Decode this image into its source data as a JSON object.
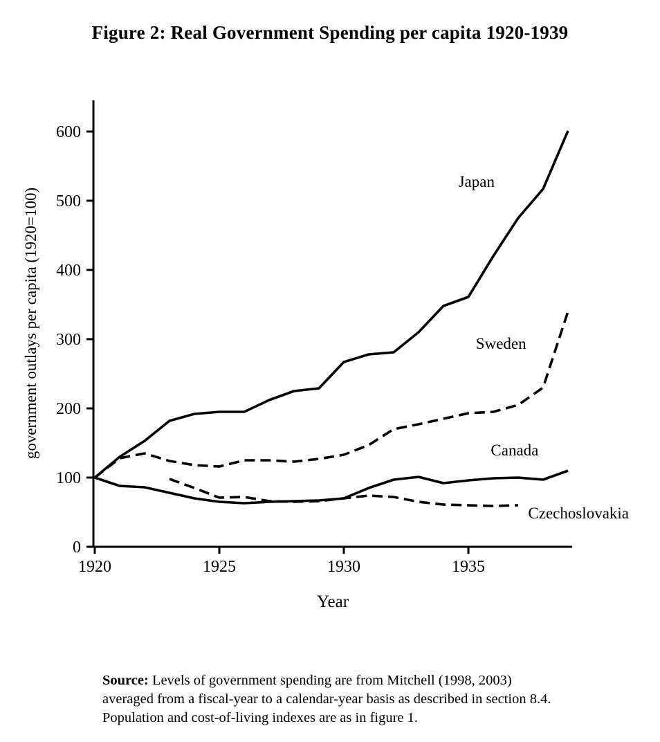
{
  "source": {
    "label": "Source:",
    "text": "Levels of government spending are from Mitchell (1998, 2003) averaged from a fiscal-year to a calendar-year basis as described in section 8.4.  Population and cost-of-living indexes are as in figure 1."
  },
  "chart_data": {
    "type": "line",
    "title": "Figure 2: Real Government Spending per capita 1920-1939",
    "xlabel": "Year",
    "ylabel": "government outlays per capita (1920=100)",
    "xlim": [
      1920,
      1939
    ],
    "ylim": [
      0,
      600
    ],
    "xticks": [
      1920,
      1925,
      1930,
      1935
    ],
    "yticks": [
      0,
      100,
      200,
      300,
      400,
      500,
      600
    ],
    "grid": false,
    "legend": "inline-labels",
    "line_color": "#000000",
    "series": [
      {
        "name": "Japan",
        "style": "solid",
        "label_x": 1934.6,
        "label_y": 520,
        "x": [
          1920,
          1921,
          1922,
          1923,
          1924,
          1925,
          1926,
          1927,
          1928,
          1929,
          1930,
          1931,
          1932,
          1933,
          1934,
          1935,
          1936,
          1937,
          1938,
          1939
        ],
        "values": [
          100,
          130,
          153,
          182,
          192,
          195,
          195,
          212,
          225,
          229,
          267,
          278,
          281,
          310,
          348,
          361,
          420,
          475,
          517,
          601
        ]
      },
      {
        "name": "Sweden",
        "style": "dashed",
        "label_x": 1935.3,
        "label_y": 286,
        "x": [
          1920,
          1921,
          1922,
          1923,
          1924,
          1925,
          1926,
          1927,
          1928,
          1929,
          1930,
          1931,
          1932,
          1933,
          1934,
          1935,
          1936,
          1937,
          1938,
          1939
        ],
        "values": [
          100,
          128,
          135,
          124,
          118,
          116,
          125,
          125,
          123,
          127,
          133,
          147,
          170,
          177,
          185,
          193,
          195,
          205,
          230,
          340
        ]
      },
      {
        "name": "Canada",
        "style": "solid",
        "label_x": 1935.9,
        "label_y": 132,
        "x": [
          1920,
          1921,
          1922,
          1923,
          1924,
          1925,
          1926,
          1927,
          1928,
          1929,
          1930,
          1931,
          1932,
          1933,
          1934,
          1935,
          1936,
          1937,
          1938,
          1939
        ],
        "values": [
          100,
          88,
          86,
          78,
          70,
          65,
          63,
          65,
          66,
          67,
          70,
          85,
          97,
          101,
          92,
          96,
          99,
          100,
          97,
          110
        ]
      },
      {
        "name": "Czechoslovakia",
        "style": "dashed",
        "label_x": 1937.4,
        "label_y": 41,
        "x": [
          1923,
          1924,
          1925,
          1926,
          1927,
          1928,
          1929,
          1930,
          1931,
          1932,
          1933,
          1934,
          1935,
          1936,
          1937
        ],
        "values": [
          98,
          85,
          71,
          72,
          66,
          65,
          66,
          70,
          74,
          72,
          65,
          61,
          60,
          59,
          60
        ]
      }
    ]
  }
}
